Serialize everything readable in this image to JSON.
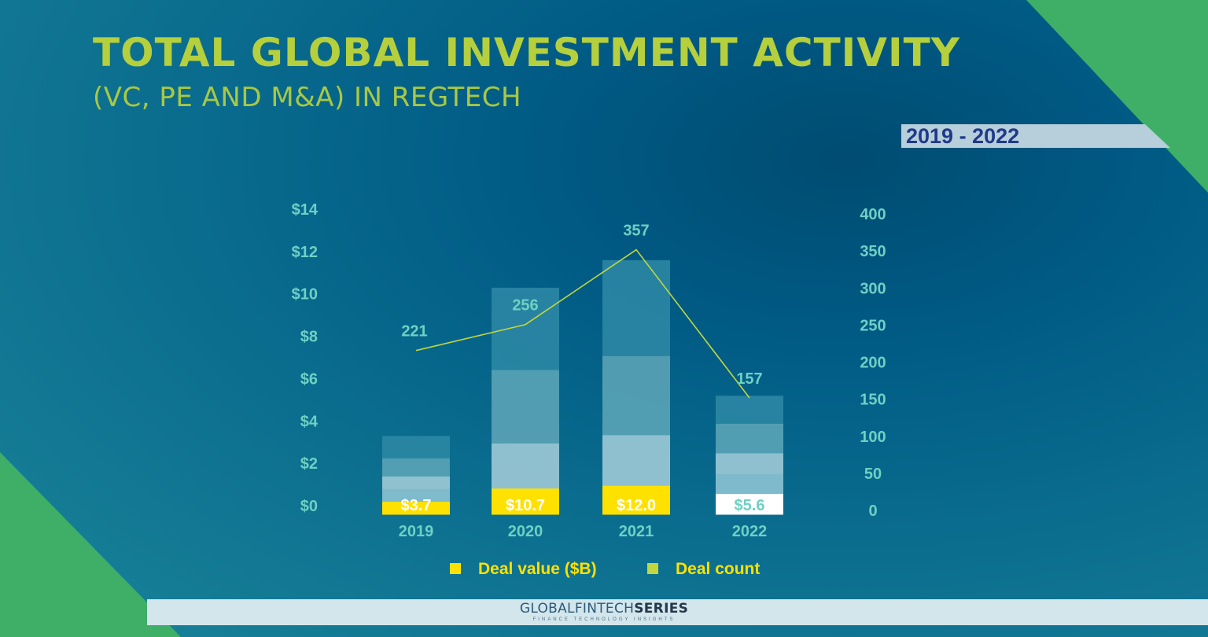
{
  "title": "TOTAL GLOBAL INVESTMENT ACTIVITY",
  "subtitle": "(VC, PE AND M&A) IN REGTECH",
  "date_range": "2019 - 2022",
  "footer": {
    "brand_light": "GLOBALFINTECH",
    "brand_bold": "SERIES",
    "tagline": "FINANCE TECHNOLOGY INSIGHTS"
  },
  "colors": {
    "title": "#b5cf3d",
    "deal_value": "#ffe100",
    "deal_count_line": "#c2d63e",
    "axis_text": "#6fd0c4",
    "green_corner": "#3fae67"
  },
  "chart_data": {
    "type": "bar",
    "categories": [
      "2019",
      "2020",
      "2021",
      "2022"
    ],
    "series": [
      {
        "name": "Deal value ($B)",
        "type": "bar",
        "axis": "left",
        "values": [
          3.7,
          10.7,
          12.0,
          5.6
        ],
        "labels": [
          "$3.7",
          "$10.7",
          "$12.0",
          "$5.6"
        ]
      },
      {
        "name": "Deal count",
        "type": "line",
        "axis": "right",
        "values": [
          221,
          256,
          357,
          157
        ],
        "labels": [
          "221",
          "256",
          "357",
          "157"
        ]
      }
    ],
    "y_left": {
      "ticks": [
        "$0",
        "$2",
        "$4",
        "$6",
        "$8",
        "$10",
        "$12",
        "$14"
      ],
      "range": [
        0,
        14
      ]
    },
    "y_right": {
      "ticks": [
        "0",
        "50",
        "100",
        "150",
        "200",
        "250",
        "300",
        "350",
        "400"
      ],
      "range": [
        0,
        400
      ]
    },
    "stack_segments": [
      [
        0.65,
        0.64,
        0.74,
        0.76
      ],
      [
        0.52,
        0.57,
        0.61,
        0.8
      ],
      [
        0.35,
        0.35,
        0.39,
        0.55
      ],
      [
        0.38,
        0.2,
        0.22,
        0.55
      ],
      [
        0.36,
        0.0,
        0.0,
        0.55
      ]
    ],
    "legend": {
      "position": "bottom"
    },
    "grid": false
  }
}
